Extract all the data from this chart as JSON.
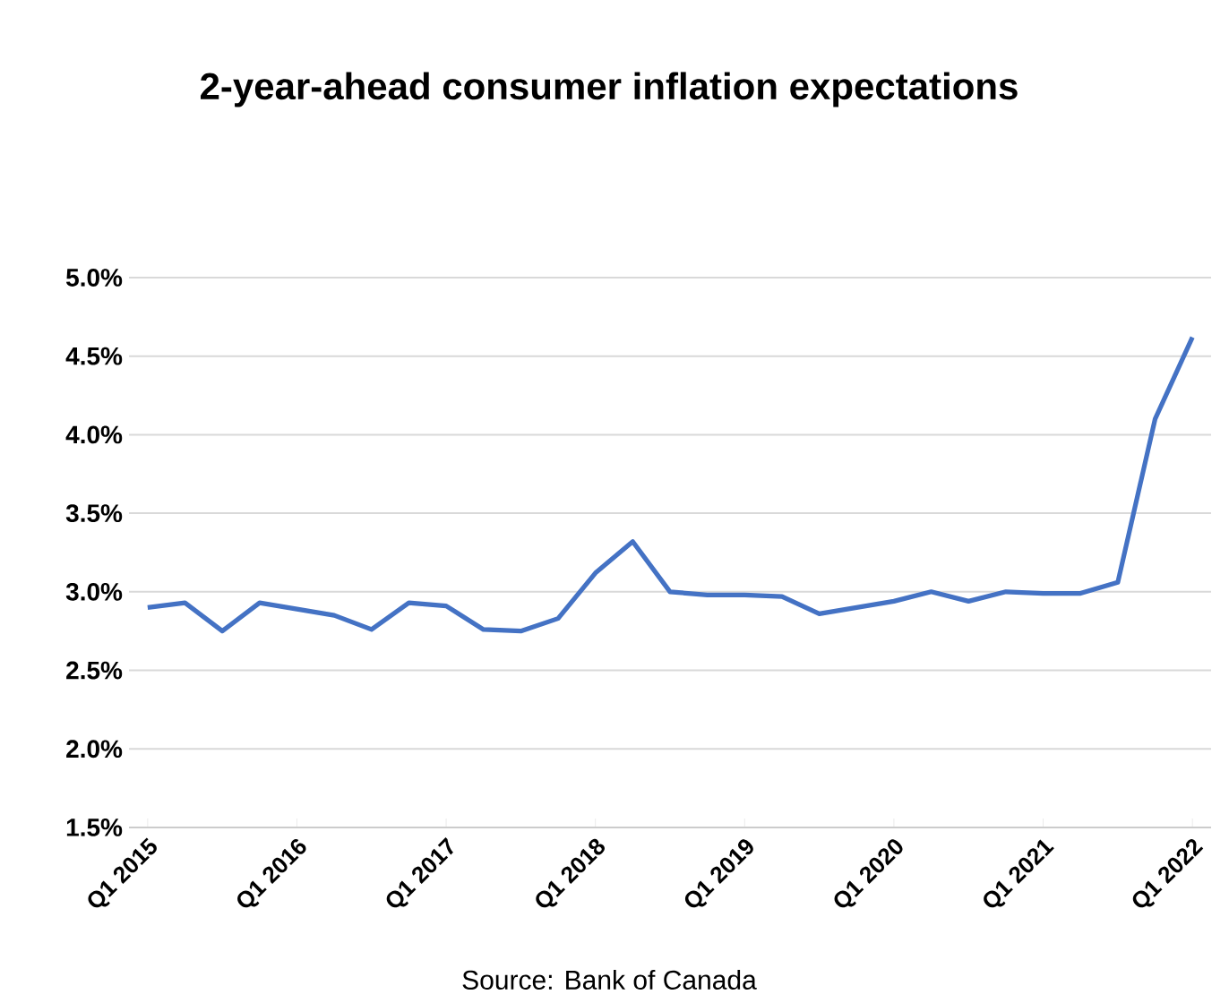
{
  "chart_data": {
    "type": "line",
    "title": "2-year-ahead consumer inflation expectations",
    "categories": [
      "Q1 2015",
      null,
      null,
      null,
      "Q1 2016",
      null,
      null,
      null,
      "Q1 2017",
      null,
      null,
      null,
      "Q1 2018",
      null,
      null,
      null,
      "Q1 2019",
      null,
      null,
      null,
      "Q1 2020",
      null,
      null,
      null,
      "Q1 2021",
      null,
      null,
      null,
      "Q1 2022"
    ],
    "series": [
      {
        "color": "#4472c4",
        "values": [
          2.9,
          2.93,
          2.75,
          2.93,
          2.89,
          2.85,
          2.76,
          2.93,
          2.91,
          2.76,
          2.75,
          2.83,
          3.12,
          3.32,
          3.0,
          2.98,
          2.98,
          2.97,
          2.86,
          2.9,
          2.94,
          3.0,
          2.94,
          3.0,
          2.99,
          2.99,
          3.06,
          4.1,
          4.62
        ]
      }
    ],
    "ylim": [
      1.5,
      5.0
    ],
    "yticks": [
      {
        "value": 1.5,
        "label": "1.5%"
      },
      {
        "value": 2.0,
        "label": "2.0%"
      },
      {
        "value": 2.5,
        "label": "2.5%"
      },
      {
        "value": 3.0,
        "label": "3.0%"
      },
      {
        "value": 3.5,
        "label": "3.5%"
      },
      {
        "value": 4.0,
        "label": "4.0%"
      },
      {
        "value": 4.5,
        "label": "4.5%"
      },
      {
        "value": 5.0,
        "label": "5.0%"
      }
    ],
    "grid": "y",
    "legend": false,
    "marker": "none",
    "line_style": "solid",
    "annotations": [
      "Source:  Bank of Canada"
    ]
  }
}
